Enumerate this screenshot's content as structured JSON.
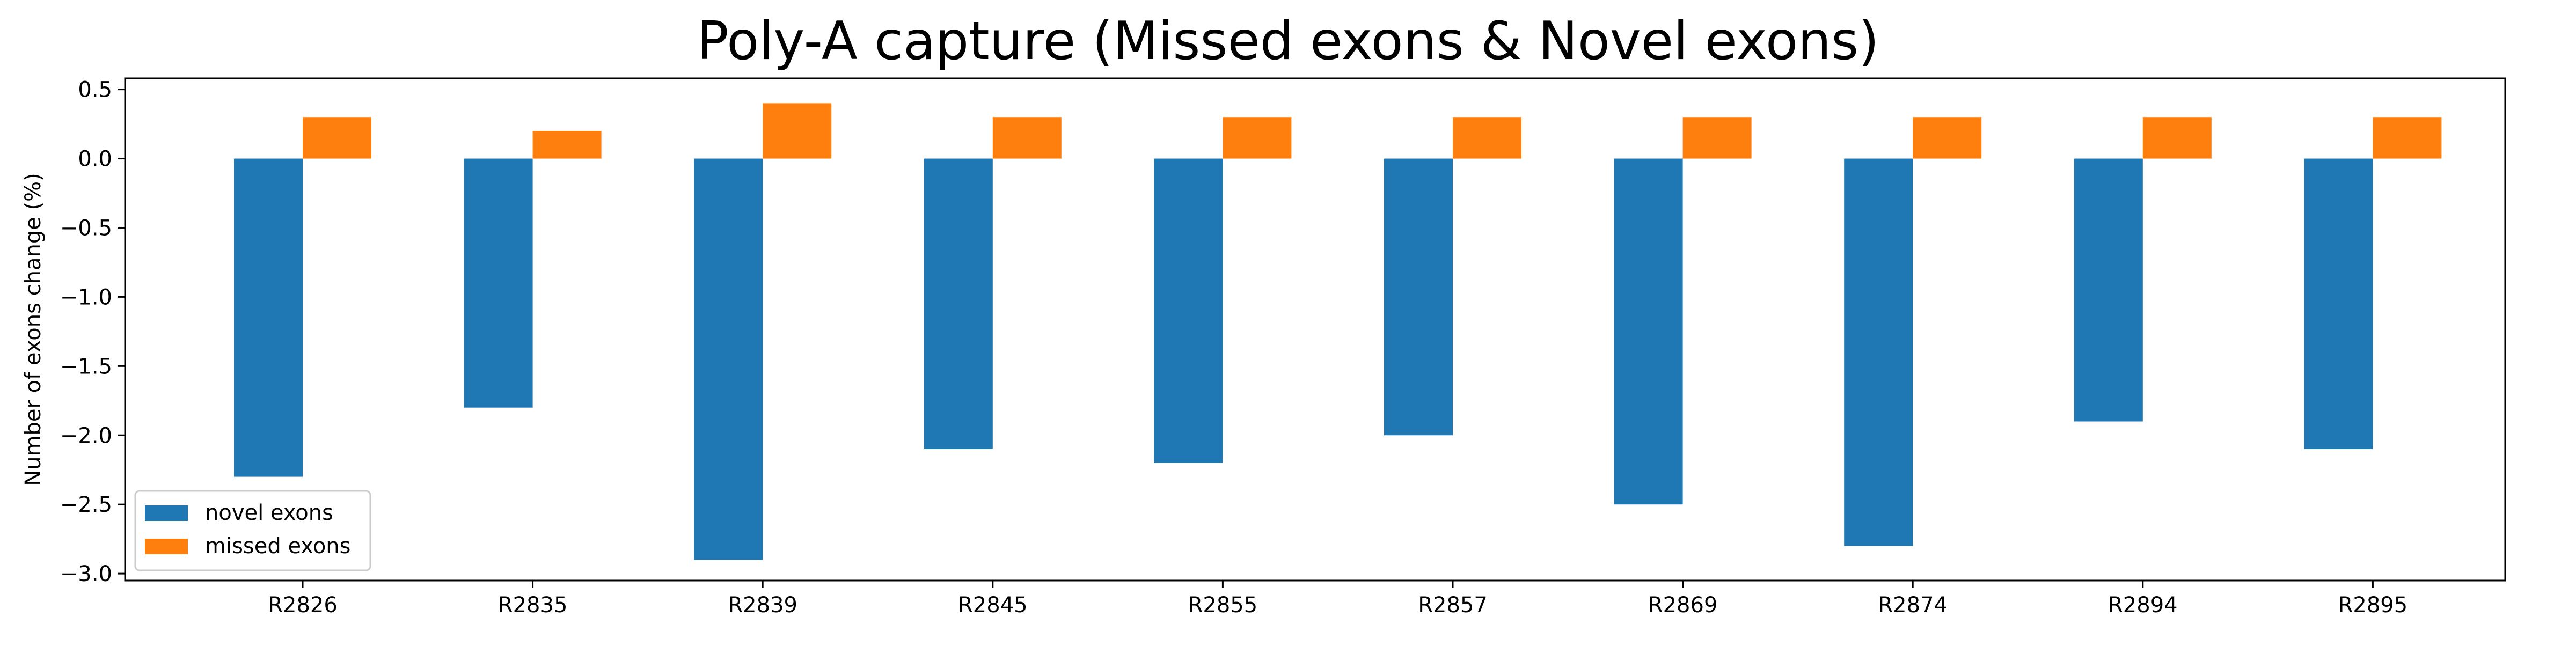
{
  "chart_data": {
    "type": "bar",
    "title": "Poly-A capture (Missed exons & Novel exons)",
    "xlabel": "",
    "ylabel": "Number of exons change (%)",
    "categories": [
      "R2826",
      "R2835",
      "R2839",
      "R2845",
      "R2855",
      "R2857",
      "R2869",
      "R2874",
      "R2894",
      "R2895"
    ],
    "series": [
      {
        "name": "novel exons",
        "color": "#1f77b4",
        "values": [
          -2.3,
          -1.8,
          -2.9,
          -2.1,
          -2.2,
          -2.0,
          -2.5,
          -2.8,
          -1.9,
          -2.1
        ]
      },
      {
        "name": "missed exons",
        "color": "#ff7f0e",
        "values": [
          0.3,
          0.2,
          0.4,
          0.3,
          0.3,
          0.3,
          0.3,
          0.3,
          0.3,
          0.3
        ]
      }
    ],
    "ylim": [
      -3.05,
      0.58
    ],
    "yticks": [
      0.5,
      0.0,
      -0.5,
      -1.0,
      -1.5,
      -2.0,
      -2.5,
      -3.0
    ],
    "ytick_labels": [
      "0.5",
      "0.0",
      "−0.5",
      "−1.0",
      "−1.5",
      "−2.0",
      "−2.5",
      "−3.0"
    ],
    "grid": false,
    "legend": "lower-left"
  }
}
